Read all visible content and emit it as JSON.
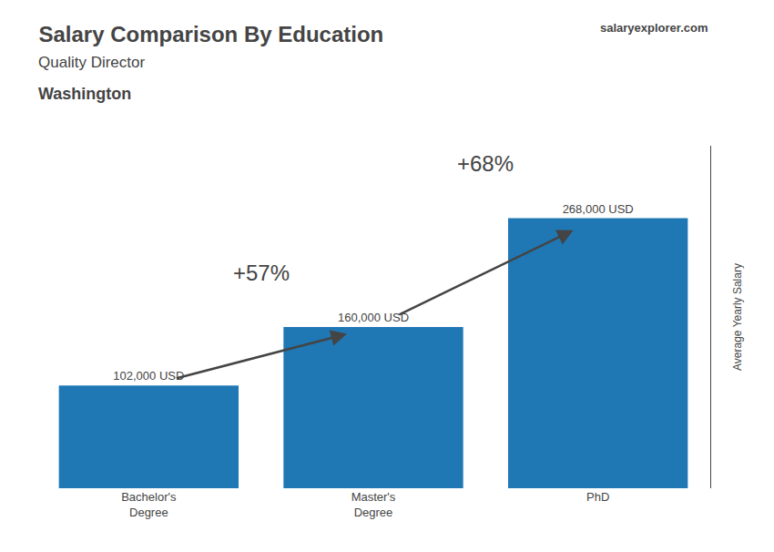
{
  "chart_data": {
    "type": "bar",
    "title": "Salary Comparison By Education",
    "subtitle": "Quality Director",
    "ylabel": "Average Yearly Salary",
    "categories": [
      "Bachelor's\nDegree",
      "Master's\nDegree",
      "PhD"
    ],
    "values": [
      102000,
      160000,
      268000
    ],
    "value_labels": [
      "102,000 USD",
      "160,000 USD",
      "268,000 USD"
    ],
    "data_labels": true,
    "ylim": [
      0,
      340000
    ],
    "tick_labels": "x",
    "grid": false,
    "annotations": [
      {
        "text": "Washington"
      },
      {
        "text": "salaryexplorer.com"
      },
      {
        "text": "+57%",
        "from": "Bachelor's\nDegree",
        "to": "Master's\nDegree"
      },
      {
        "text": "+68%",
        "from": "Master's\nDegree",
        "to": "PhD"
      }
    ]
  }
}
